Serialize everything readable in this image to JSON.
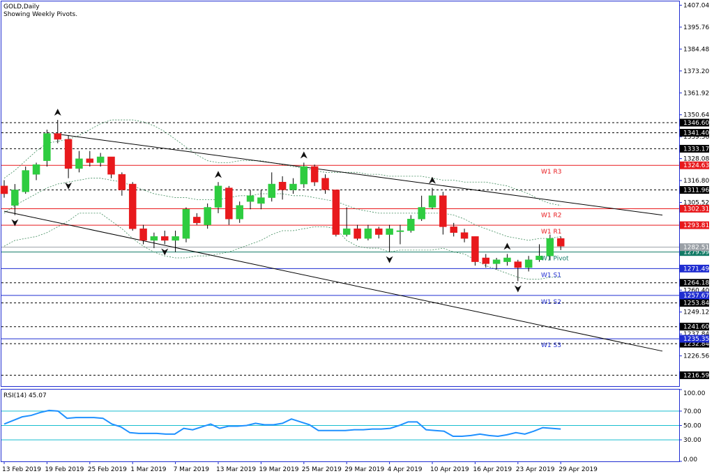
{
  "title": {
    "symbol_line": "GOLD,Daily",
    "subtitle": "Showing Weekly Pivots."
  },
  "colors": {
    "bull": "#2ecc40",
    "bear": "#e8191c",
    "pivot_red": "#e8191c",
    "pivot_blue": "#1f2dd1",
    "pivot_teal": "#117a65",
    "rsi_line": "#1e90ff",
    "rsi_level": "#17becf",
    "band": "#3c8a5a",
    "axis": "#1f2dd1"
  },
  "chart_data": [
    {
      "type": "candlestick",
      "title": "GOLD,Daily",
      "ylim": [
        1211,
        1409
      ],
      "y_tick_labels": [
        "1407.04",
        "1395.76",
        "1384.48",
        "1373.20",
        "1361.92",
        "1350.64",
        "1339.36",
        "1328.08",
        "1316.80",
        "1305.52",
        "1294.24",
        "1282.96",
        "1271.68",
        "1260.40",
        "1249.12",
        "1237.84",
        "1226.56"
      ],
      "y_tick_values": [
        1407.04,
        1395.76,
        1384.48,
        1373.2,
        1361.92,
        1350.64,
        1339.36,
        1328.08,
        1316.8,
        1305.52,
        1294.24,
        1282.96,
        1271.68,
        1260.4,
        1249.12,
        1237.84,
        1226.56
      ],
      "x_labels": [
        {
          "index": 0,
          "text": "13 Feb 2019"
        },
        {
          "index": 4,
          "text": "19 Feb 2019"
        },
        {
          "index": 8,
          "text": "25 Feb 2019"
        },
        {
          "index": 12,
          "text": "1 Mar 2019"
        },
        {
          "index": 16,
          "text": "7 Mar 2019"
        },
        {
          "index": 20,
          "text": "13 Mar 2019"
        },
        {
          "index": 24,
          "text": "19 Mar 2019"
        },
        {
          "index": 28,
          "text": "25 Mar 2019"
        },
        {
          "index": 32,
          "text": "29 Mar 2019"
        },
        {
          "index": 36,
          "text": "4 Apr 2019"
        },
        {
          "index": 40,
          "text": "10 Apr 2019"
        },
        {
          "index": 44,
          "text": "16 Apr 2019"
        },
        {
          "index": 48,
          "text": "23 Apr 2019"
        },
        {
          "index": 52,
          "text": "29 Apr 2019"
        }
      ],
      "candles": [
        {
          "o": 1314,
          "h": 1317,
          "l": 1308,
          "c": 1310
        },
        {
          "o": 1304,
          "h": 1315,
          "l": 1299,
          "c": 1312
        },
        {
          "o": 1311,
          "h": 1324,
          "l": 1310,
          "c": 1322
        },
        {
          "o": 1320,
          "h": 1326,
          "l": 1317,
          "c": 1325
        },
        {
          "o": 1327,
          "h": 1343,
          "l": 1324,
          "c": 1341
        },
        {
          "o": 1341,
          "h": 1348,
          "l": 1336,
          "c": 1338
        },
        {
          "o": 1338,
          "h": 1340,
          "l": 1318,
          "c": 1323
        },
        {
          "o": 1323,
          "h": 1332,
          "l": 1321,
          "c": 1328
        },
        {
          "o": 1328,
          "h": 1332,
          "l": 1324,
          "c": 1326
        },
        {
          "o": 1326,
          "h": 1331,
          "l": 1324,
          "c": 1329
        },
        {
          "o": 1329,
          "h": 1329,
          "l": 1318,
          "c": 1320
        },
        {
          "o": 1320,
          "h": 1321,
          "l": 1309,
          "c": 1312
        },
        {
          "o": 1315,
          "h": 1316,
          "l": 1291,
          "c": 1292
        },
        {
          "o": 1292,
          "h": 1294,
          "l": 1284,
          "c": 1286
        },
        {
          "o": 1286,
          "h": 1290,
          "l": 1282,
          "c": 1288
        },
        {
          "o": 1288,
          "h": 1291,
          "l": 1284,
          "c": 1286
        },
        {
          "o": 1286,
          "h": 1291,
          "l": 1280,
          "c": 1288
        },
        {
          "o": 1287,
          "h": 1303,
          "l": 1285,
          "c": 1302
        },
        {
          "o": 1298,
          "h": 1300,
          "l": 1294,
          "c": 1295
        },
        {
          "o": 1294,
          "h": 1305,
          "l": 1292,
          "c": 1303
        },
        {
          "o": 1303,
          "h": 1316,
          "l": 1300,
          "c": 1314
        },
        {
          "o": 1313,
          "h": 1314,
          "l": 1294,
          "c": 1297
        },
        {
          "o": 1297,
          "h": 1306,
          "l": 1295,
          "c": 1304
        },
        {
          "o": 1306,
          "h": 1312,
          "l": 1302,
          "c": 1309
        },
        {
          "o": 1305,
          "h": 1312,
          "l": 1302,
          "c": 1308
        },
        {
          "o": 1308,
          "h": 1321,
          "l": 1306,
          "c": 1315
        },
        {
          "o": 1316,
          "h": 1319,
          "l": 1307,
          "c": 1312
        },
        {
          "o": 1312,
          "h": 1318,
          "l": 1310,
          "c": 1315
        },
        {
          "o": 1315,
          "h": 1326,
          "l": 1313,
          "c": 1324
        },
        {
          "o": 1324,
          "h": 1325,
          "l": 1314,
          "c": 1316
        },
        {
          "o": 1318,
          "h": 1320,
          "l": 1310,
          "c": 1312
        },
        {
          "o": 1312,
          "h": 1312,
          "l": 1288,
          "c": 1289
        },
        {
          "o": 1289,
          "h": 1303,
          "l": 1288,
          "c": 1292
        },
        {
          "o": 1292,
          "h": 1294,
          "l": 1286,
          "c": 1287
        },
        {
          "o": 1287,
          "h": 1294,
          "l": 1286,
          "c": 1292
        },
        {
          "o": 1292,
          "h": 1293,
          "l": 1287,
          "c": 1289
        },
        {
          "o": 1289,
          "h": 1294,
          "l": 1280,
          "c": 1292
        },
        {
          "o": 1291,
          "h": 1294,
          "l": 1284,
          "c": 1291
        },
        {
          "o": 1291,
          "h": 1299,
          "l": 1290,
          "c": 1297
        },
        {
          "o": 1297,
          "h": 1309,
          "l": 1296,
          "c": 1303
        },
        {
          "o": 1303,
          "h": 1313,
          "l": 1302,
          "c": 1309
        },
        {
          "o": 1309,
          "h": 1311,
          "l": 1289,
          "c": 1293
        },
        {
          "o": 1293,
          "h": 1295,
          "l": 1288,
          "c": 1290
        },
        {
          "o": 1290,
          "h": 1292,
          "l": 1285,
          "c": 1287
        },
        {
          "o": 1288,
          "h": 1288,
          "l": 1273,
          "c": 1275
        },
        {
          "o": 1277,
          "h": 1279,
          "l": 1272,
          "c": 1274
        },
        {
          "o": 1274,
          "h": 1277,
          "l": 1271,
          "c": 1276
        },
        {
          "o": 1275,
          "h": 1279,
          "l": 1273,
          "c": 1277
        },
        {
          "o": 1275,
          "h": 1276,
          "l": 1265,
          "c": 1272
        },
        {
          "o": 1272,
          "h": 1278,
          "l": 1270,
          "c": 1276
        },
        {
          "o": 1276,
          "h": 1284,
          "l": 1275,
          "c": 1278
        },
        {
          "o": 1278,
          "h": 1289,
          "l": 1276,
          "c": 1287
        },
        {
          "o": 1287,
          "h": 1288,
          "l": 1281,
          "c": 1283
        }
      ],
      "upper_band": [
        1318,
        1322,
        1327,
        1332,
        1336,
        1337,
        1338,
        1340,
        1343,
        1346,
        1348,
        1348,
        1348,
        1347,
        1345,
        1342,
        1338,
        1334,
        1330,
        1327,
        1326,
        1326,
        1327,
        1327,
        1327,
        1326,
        1325,
        1324,
        1323,
        1322,
        1321,
        1321,
        1321,
        1321,
        1320,
        1320,
        1319,
        1319,
        1319,
        1319,
        1318,
        1317,
        1317,
        1316,
        1316,
        1316,
        1315,
        1314,
        1312,
        1310,
        1307,
        1305,
        1304
      ],
      "middle_band": [
        1300,
        1304,
        1307,
        1310,
        1313,
        1315,
        1316,
        1317,
        1318,
        1318,
        1317,
        1316,
        1314,
        1312,
        1310,
        1309,
        1308,
        1308,
        1307,
        1307,
        1307,
        1308,
        1309,
        1309,
        1310,
        1310,
        1310,
        1309,
        1309,
        1308,
        1307,
        1306,
        1304,
        1302,
        1301,
        1300,
        1300,
        1300,
        1300,
        1300,
        1300,
        1300,
        1299,
        1297,
        1294,
        1292,
        1290,
        1288,
        1287,
        1286,
        1287,
        1287,
        1288
      ],
      "lower_band": [
        1283,
        1286,
        1287,
        1288,
        1290,
        1293,
        1296,
        1300,
        1300,
        1300,
        1296,
        1292,
        1287,
        1283,
        1280,
        1278,
        1277,
        1277,
        1278,
        1278,
        1279,
        1280,
        1282,
        1284,
        1286,
        1289,
        1291,
        1291,
        1292,
        1293,
        1293,
        1292,
        1286,
        1283,
        1282,
        1282,
        1280,
        1281,
        1281,
        1281,
        1281,
        1282,
        1280,
        1279,
        1276,
        1273,
        1271,
        1269,
        1267,
        1266,
        1266,
        1267,
        1267
      ],
      "fractals": [
        {
          "index": 5,
          "pos": "up"
        },
        {
          "index": 6,
          "pos": "down"
        },
        {
          "index": 1,
          "pos": "down"
        },
        {
          "index": 15,
          "pos": "down"
        },
        {
          "index": 20,
          "pos": "up"
        },
        {
          "index": 28,
          "pos": "up"
        },
        {
          "index": 36,
          "pos": "down"
        },
        {
          "index": 40,
          "pos": "up"
        },
        {
          "index": 47,
          "pos": "up"
        },
        {
          "index": 48,
          "pos": "down"
        }
      ],
      "trendlines": [
        {
          "from": {
            "index": 4.6,
            "value": 1341
          },
          "to": {
            "index": 61.5,
            "value": 1299
          }
        },
        {
          "from": {
            "index": 0,
            "value": 1301
          },
          "to": {
            "index": 61.5,
            "value": 1229
          }
        }
      ],
      "pivot_lines": [
        {
          "label": "W1 R3",
          "value": 1324.63,
          "tag": "1324.63",
          "color": "red"
        },
        {
          "label": "W1 R2",
          "value": 1302.31,
          "tag": "1302.31",
          "color": "red"
        },
        {
          "label": "W1 R1",
          "value": 1293.81,
          "tag": "1293.81",
          "color": "red"
        },
        {
          "label": "W1 Pivot",
          "value": 1279.99,
          "tag": "1279.99",
          "color": "teal"
        },
        {
          "label": "W1 S1",
          "value": 1271.49,
          "tag": "1271.49",
          "color": "blue"
        },
        {
          "label": "W1 S2",
          "value": 1257.67,
          "tag": "1257.67",
          "color": "blue"
        },
        {
          "label": "W1 S3",
          "value": 1235.35,
          "tag": "1235.35",
          "color": "blue"
        }
      ],
      "level_lines": [
        {
          "value": 1346.6,
          "tag": "1346.60"
        },
        {
          "value": 1341.4,
          "tag": "1341.40"
        },
        {
          "value": 1333.17,
          "tag": "1333.17"
        },
        {
          "value": 1311.96,
          "tag": "1311.96"
        },
        {
          "value": 1264.18,
          "tag": "1264.18"
        },
        {
          "value": 1253.84,
          "tag": "1253.84"
        },
        {
          "value": 1241.6,
          "tag": "1241.60"
        },
        {
          "value": 1232.84,
          "tag": "1232.84"
        },
        {
          "value": 1216.59,
          "tag": "1216.59"
        }
      ],
      "current_price": {
        "value": 1282.51,
        "tag": "1282.51"
      }
    },
    {
      "type": "line",
      "title": "RSI(14) 45.07",
      "ylim": [
        0,
        100
      ],
      "y_tick_labels": [
        "100.00",
        "70.00",
        "50.00",
        "30.00",
        "0.00"
      ],
      "y_tick_values": [
        100,
        70,
        50,
        30,
        0
      ],
      "levels": [
        70,
        50,
        30
      ],
      "values": [
        52,
        57,
        62,
        64,
        68,
        71,
        70,
        60,
        61,
        61,
        61,
        60,
        52,
        48,
        40,
        39,
        39,
        39,
        38,
        38,
        46,
        44,
        48,
        52,
        46,
        49,
        49,
        50,
        53,
        51,
        51,
        53,
        59,
        55,
        51,
        43,
        43,
        43,
        43,
        44,
        44,
        45,
        45,
        46,
        50,
        55,
        55,
        44,
        43,
        42,
        35,
        35,
        36,
        38,
        36,
        35,
        37,
        40,
        38,
        42,
        47,
        46,
        45
      ]
    }
  ]
}
